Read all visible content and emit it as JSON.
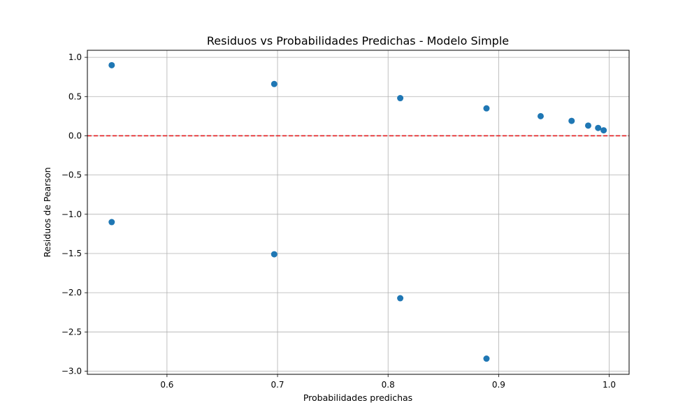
{
  "chart_data": {
    "type": "scatter",
    "title": "Residuos vs Probabilidades Predichas - Modelo Simple",
    "xlabel": "Probabilidades predichas",
    "ylabel": "Residuos de Pearson",
    "xlim": [
      0.528,
      1.018
    ],
    "ylim": [
      -3.04,
      1.09
    ],
    "xticks": [
      0.6,
      0.7,
      0.8,
      0.9,
      1.0
    ],
    "xtick_labels": [
      "0.6",
      "0.7",
      "0.8",
      "0.9",
      "1.0"
    ],
    "yticks": [
      1.0,
      0.5,
      0.0,
      -0.5,
      -1.0,
      -1.5,
      -2.0,
      -2.5,
      -3.0
    ],
    "ytick_labels": [
      "1.0",
      "0.5",
      "0.0",
      "−0.5",
      "−1.0",
      "−1.5",
      "−2.0",
      "−2.5",
      "−3.0"
    ],
    "grid": true,
    "reference_line": {
      "y": 0.0,
      "style": "dashed",
      "color": "#e31a1c"
    },
    "marker_color": "#1f77b4",
    "points": [
      {
        "x": 0.55,
        "y": 0.9
      },
      {
        "x": 0.55,
        "y": -1.1
      },
      {
        "x": 0.697,
        "y": 0.66
      },
      {
        "x": 0.697,
        "y": -1.51
      },
      {
        "x": 0.811,
        "y": 0.48
      },
      {
        "x": 0.811,
        "y": -2.07
      },
      {
        "x": 0.889,
        "y": 0.35
      },
      {
        "x": 0.889,
        "y": -2.84
      },
      {
        "x": 0.938,
        "y": 0.25
      },
      {
        "x": 0.966,
        "y": 0.19
      },
      {
        "x": 0.981,
        "y": 0.13
      },
      {
        "x": 0.99,
        "y": 0.1
      },
      {
        "x": 0.995,
        "y": 0.07
      }
    ]
  }
}
